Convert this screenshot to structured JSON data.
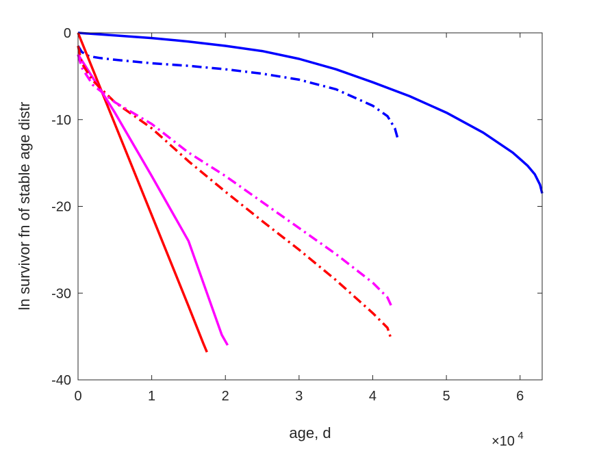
{
  "chart_data": {
    "type": "line",
    "xlabel": "age, d",
    "ylabel": "ln survivor fn of stable age distr",
    "x_multiplier": {
      "base": "×10",
      "exponent": "4"
    },
    "xlim": [
      0,
      6.3
    ],
    "ylim": [
      -40,
      0
    ],
    "xticks": [
      0,
      1,
      2,
      3,
      4,
      5,
      6
    ],
    "yticks": [
      0,
      -10,
      -20,
      -30,
      -40
    ],
    "grid": false,
    "legend": "none",
    "x_units_note": "x values in units of 10^4 days as printed by the axis multiplier",
    "series": [
      {
        "color": "#0000ff",
        "style": "solid",
        "x": [
          0,
          0.5,
          1,
          1.5,
          2,
          2.5,
          3,
          3.5,
          4,
          4.5,
          5,
          5.5,
          5.9,
          6.1,
          6.2,
          6.27,
          6.3
        ],
        "y": [
          0,
          -0.3,
          -0.6,
          -1.0,
          -1.5,
          -2.1,
          -3.0,
          -4.2,
          -5.7,
          -7.3,
          -9.2,
          -11.5,
          -13.8,
          -15.3,
          -16.3,
          -17.5,
          -18.5
        ]
      },
      {
        "color": "#0000ff",
        "style": "dashdot",
        "x": [
          0,
          0.05,
          0.15,
          0.3,
          0.5,
          1,
          1.5,
          2,
          2.5,
          3,
          3.5,
          4,
          4.2,
          4.3,
          4.35
        ],
        "y": [
          -1.5,
          -2.2,
          -2.7,
          -2.9,
          -3.1,
          -3.5,
          -3.8,
          -4.2,
          -4.7,
          -5.4,
          -6.5,
          -8.4,
          -9.6,
          -11.0,
          -12.5
        ]
      },
      {
        "color": "#ff0000",
        "style": "solid",
        "x": [
          0,
          0.5,
          1.0,
          1.5,
          1.7,
          1.75
        ],
        "y": [
          0,
          -10.5,
          -21.0,
          -31.5,
          -35.8,
          -36.8
        ]
      },
      {
        "color": "#ff00ff",
        "style": "solid",
        "x": [
          0,
          0.3,
          0.5,
          1.0,
          1.5,
          1.95,
          2.03
        ],
        "y": [
          -2.5,
          -6.5,
          -9.2,
          -16.5,
          -24.0,
          -34.8,
          -36.0
        ]
      },
      {
        "color": "#ff0000",
        "style": "dashdot",
        "x": [
          0,
          0.05,
          0.2,
          0.5,
          1,
          1.5,
          2,
          2.5,
          3,
          3.5,
          4,
          4.2,
          4.25
        ],
        "y": [
          -1.5,
          -3.5,
          -5.5,
          -8.0,
          -11.0,
          -14.8,
          -18.3,
          -21.7,
          -25.0,
          -28.5,
          -32.3,
          -34.0,
          -35.3
        ]
      },
      {
        "color": "#ff00ff",
        "style": "dashdot",
        "x": [
          0,
          0.05,
          0.2,
          0.5,
          1,
          1.5,
          2,
          2.5,
          3,
          3.5,
          4,
          4.2,
          4.27
        ],
        "y": [
          -2.5,
          -4.0,
          -6.0,
          -8.0,
          -10.5,
          -13.8,
          -16.5,
          -19.5,
          -22.5,
          -25.5,
          -28.8,
          -30.5,
          -31.8
        ]
      }
    ]
  }
}
